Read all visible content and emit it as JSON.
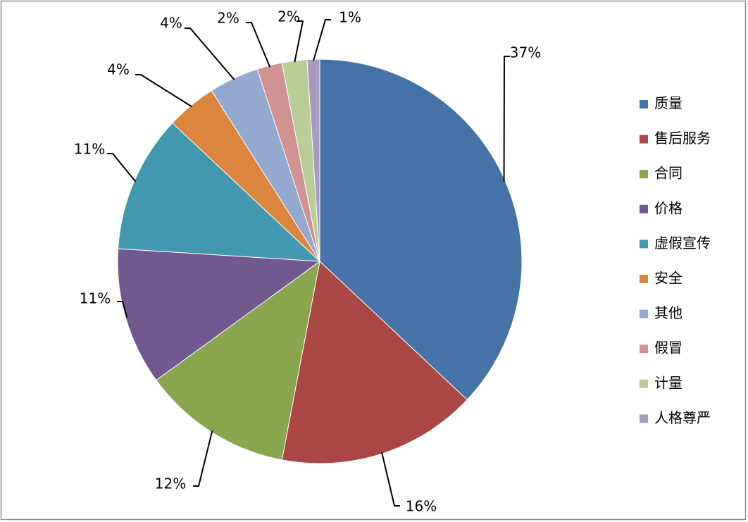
{
  "chart_data": {
    "type": "pie",
    "categories": [
      "质量",
      "售后服务",
      "合同",
      "价格",
      "虚假宣传",
      "安全",
      "其他",
      "假冒",
      "计量",
      "人格尊严"
    ],
    "values": [
      37,
      16,
      12,
      11,
      11,
      4,
      4,
      2,
      2,
      1
    ],
    "value_labels": [
      "37%",
      "16%",
      "12%",
      "11%",
      "11%",
      "4%",
      "4%",
      "2%",
      "2%",
      "1%"
    ],
    "colors": [
      "#4572A7",
      "#AA4643",
      "#89A54E",
      "#71588F",
      "#4198AF",
      "#DB843D",
      "#93A9CF",
      "#D19392",
      "#B9CD96",
      "#A99BBD"
    ],
    "legend": "right"
  }
}
